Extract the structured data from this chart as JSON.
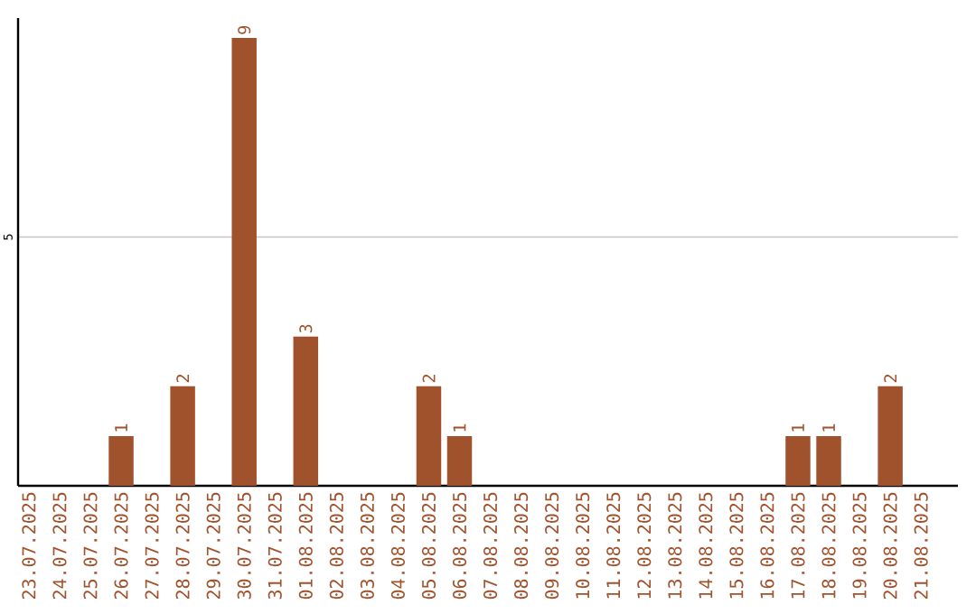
{
  "chart_data": {
    "type": "bar",
    "categories": [
      "23.07.2025",
      "24.07.2025",
      "25.07.2025",
      "26.07.2025",
      "27.07.2025",
      "28.07.2025",
      "29.07.2025",
      "30.07.2025",
      "31.07.2025",
      "01.08.2025",
      "02.08.2025",
      "03.08.2025",
      "04.08.2025",
      "05.08.2025",
      "06.08.2025",
      "07.08.2025",
      "08.08.2025",
      "09.08.2025",
      "10.08.2025",
      "11.08.2025",
      "12.08.2025",
      "13.08.2025",
      "14.08.2025",
      "15.08.2025",
      "16.08.2025",
      "17.08.2025",
      "18.08.2025",
      "19.08.2025",
      "20.08.2025",
      "21.08.2025"
    ],
    "values": [
      0,
      0,
      0,
      1,
      0,
      2,
      0,
      9,
      0,
      3,
      0,
      0,
      0,
      2,
      1,
      0,
      0,
      0,
      0,
      0,
      0,
      0,
      0,
      0,
      0,
      1,
      1,
      0,
      2,
      0
    ],
    "value_labels": [
      null,
      null,
      null,
      "1",
      null,
      "2",
      null,
      "9",
      null,
      "3",
      null,
      null,
      null,
      "2",
      "1",
      null,
      null,
      null,
      null,
      null,
      null,
      null,
      null,
      null,
      null,
      "1",
      "1",
      null,
      "2",
      null
    ],
    "color": "#a0522d",
    "ylim": [
      0,
      9.4
    ],
    "yticks": [
      5
    ],
    "grid": "y"
  }
}
